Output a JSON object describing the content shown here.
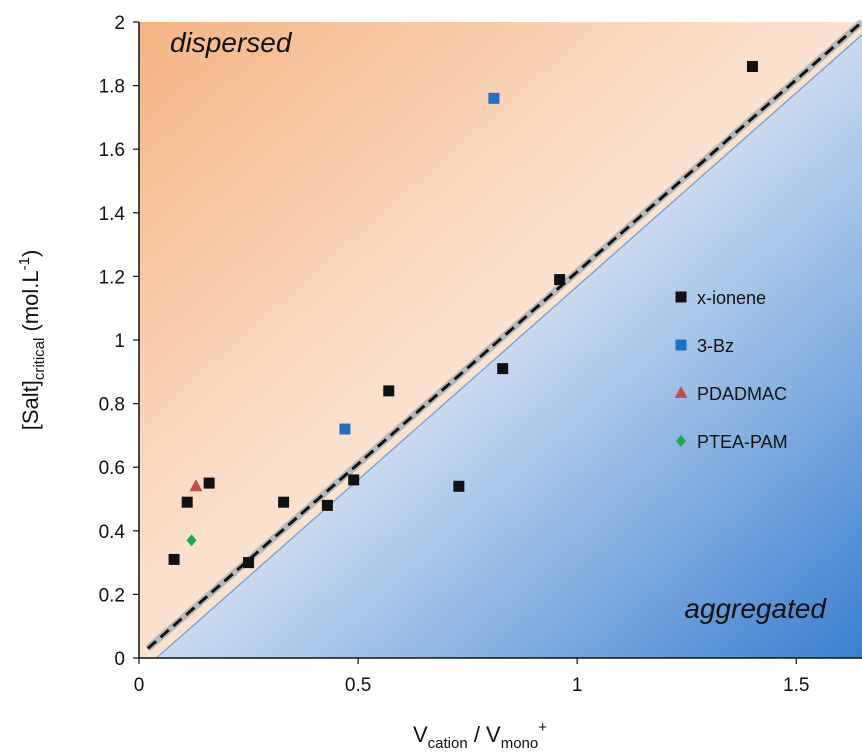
{
  "chart_data": {
    "type": "scatter",
    "title": "",
    "xlabel": {
      "main": "V",
      "sub1": "cation",
      "sep": " / V",
      "sub2": "mono",
      "sup": "+"
    },
    "ylabel": {
      "main": "[Salt]",
      "sub": "critical",
      "rest": " (mol.L",
      "sup": "-1",
      "close": ")"
    },
    "xlim": [
      0,
      1.65
    ],
    "ylim": [
      0,
      2
    ],
    "xticks": [
      0,
      0.5,
      1,
      1.5
    ],
    "xtick_labels": [
      "0",
      "0.5",
      "1",
      "1.5"
    ],
    "yticks": [
      0,
      0.2,
      0.4,
      0.6,
      0.8,
      1.0,
      1.2,
      1.4,
      1.6,
      1.8,
      2.0
    ],
    "ytick_labels": [
      "0",
      "0.2",
      "0.4",
      "0.6",
      "0.8",
      "1",
      "1.2",
      "1.4",
      "1.6",
      "1.8",
      "2"
    ],
    "grid": false,
    "legend_position": "right",
    "regions": {
      "upper": "dispersed",
      "lower": "aggregated"
    },
    "series": [
      {
        "name": "x-ionene",
        "marker": "square",
        "color": "#111111",
        "points": [
          [
            0.08,
            0.31
          ],
          [
            0.11,
            0.49
          ],
          [
            0.16,
            0.55
          ],
          [
            0.25,
            0.3
          ],
          [
            0.33,
            0.49
          ],
          [
            0.43,
            0.48
          ],
          [
            0.49,
            0.56
          ],
          [
            0.57,
            0.84
          ],
          [
            0.73,
            0.54
          ],
          [
            0.83,
            0.91
          ],
          [
            0.96,
            1.19
          ],
          [
            1.4,
            1.86
          ]
        ]
      },
      {
        "name": "3-Bz",
        "marker": "square",
        "color": "#1f6fc4",
        "points": [
          [
            0.47,
            0.72
          ],
          [
            0.81,
            1.76
          ]
        ]
      },
      {
        "name": "PDADMAC",
        "marker": "triangle",
        "color": "#c0504d",
        "points": [
          [
            0.13,
            0.54
          ]
        ]
      },
      {
        "name": "PTEA-PAM",
        "marker": "diamond",
        "color": "#1fa84a",
        "points": [
          [
            0.12,
            0.37
          ]
        ]
      }
    ],
    "lines": [
      {
        "style": "dashed",
        "color": "#111111",
        "from": [
          0.02,
          0.03
        ],
        "to": [
          1.65,
          2.0
        ]
      },
      {
        "style": "solid",
        "color": "#7fa3d8",
        "from": [
          0.04,
          0.0
        ],
        "to": [
          1.65,
          1.96
        ]
      }
    ]
  }
}
